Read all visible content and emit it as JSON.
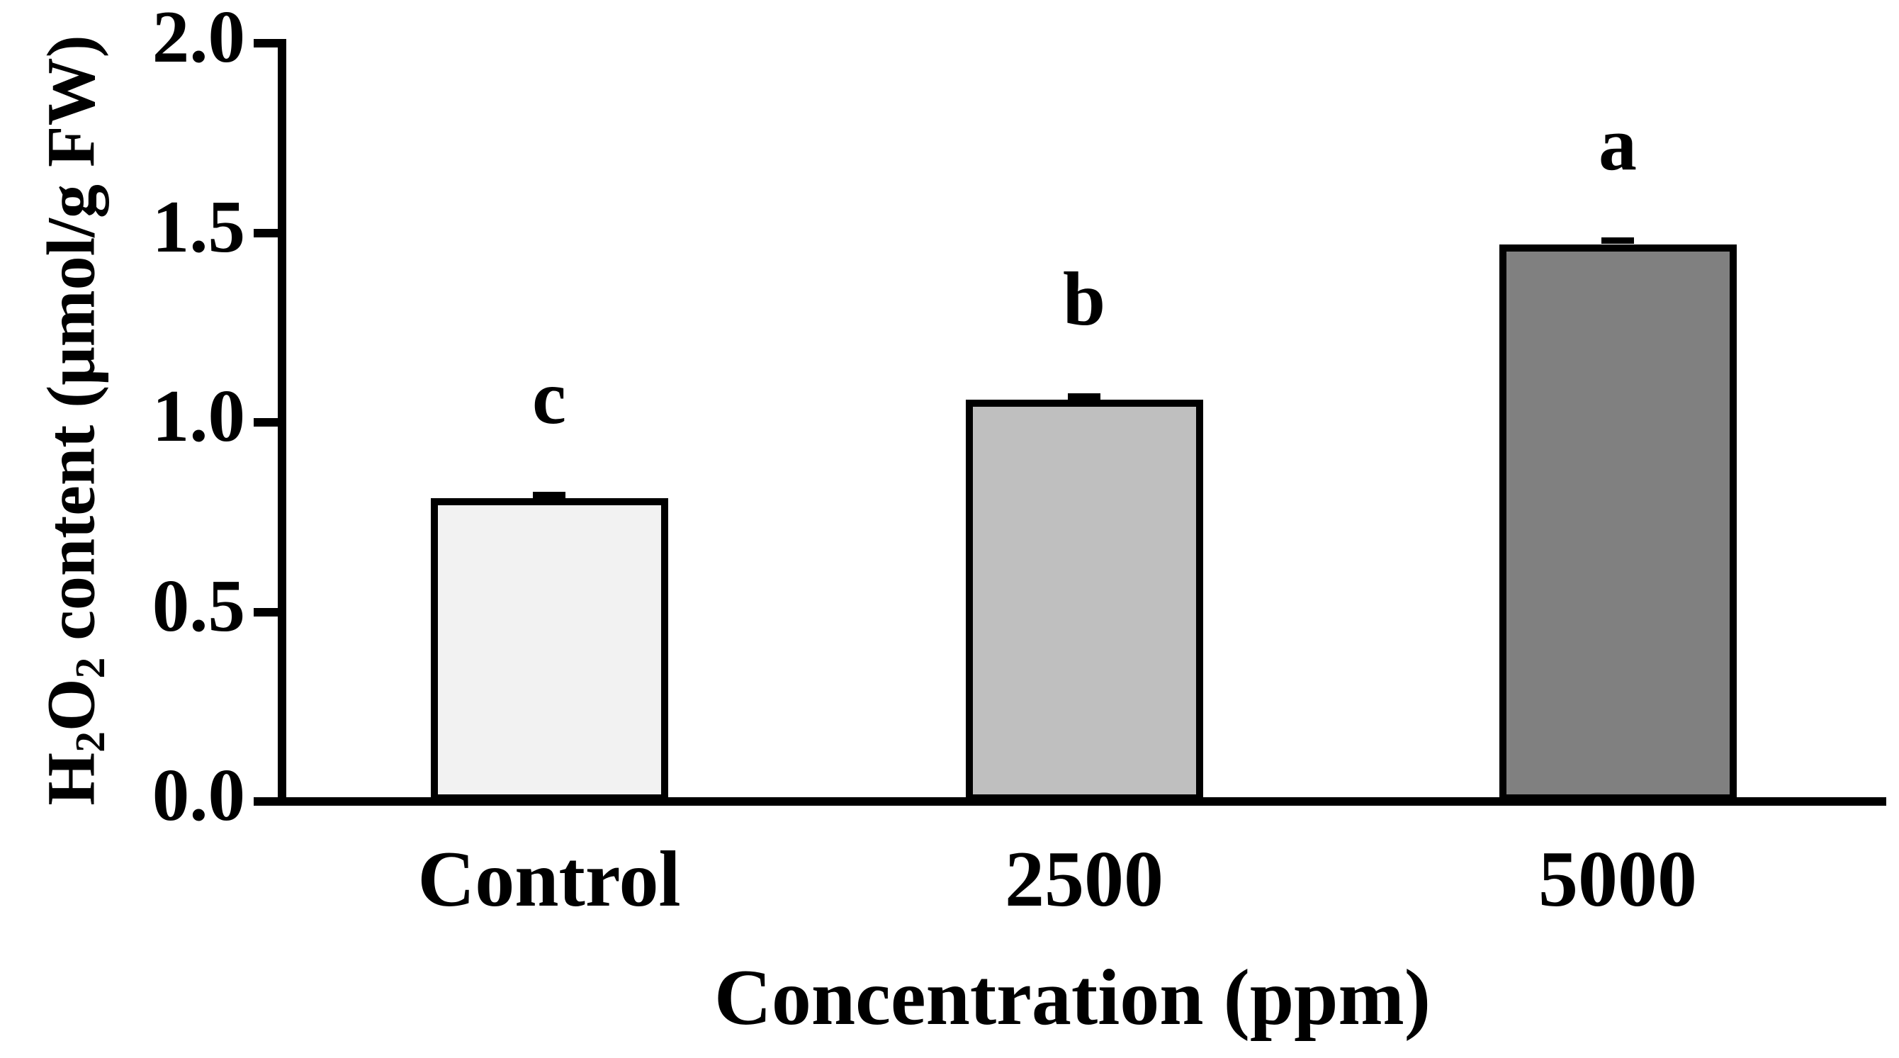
{
  "chart_data": {
    "type": "bar",
    "title": "",
    "categories": [
      "Control",
      "2500",
      "5000"
    ],
    "values": [
      0.8,
      1.06,
      1.47
    ],
    "errors": [
      0.01,
      0.01,
      0.01
    ],
    "sig_letters": [
      "c",
      "b",
      "a"
    ],
    "bar_colors": [
      "#f2f2f2",
      "#bfbfbf",
      "#808080"
    ],
    "bar_border_color": "#000000",
    "axis_color": "#000000",
    "background_color": "#ffffff",
    "xlabel": "Concentration (ppm)",
    "ylabel": "H2O2 content (μmol/g FW)",
    "ylabel_parts": {
      "h": "H",
      "sub1": "2",
      "o": "O",
      "sub2": "2",
      "rest": " content (μmol/g FW)"
    },
    "ylim": [
      0.0,
      2.0
    ],
    "yticks": [
      2.0,
      1.5,
      1.0,
      0.5,
      0.0
    ],
    "ytick_labels": [
      "2.0",
      "1.5",
      "1.0",
      "0.5",
      "0.0"
    ],
    "grid": false,
    "legend": "none"
  }
}
